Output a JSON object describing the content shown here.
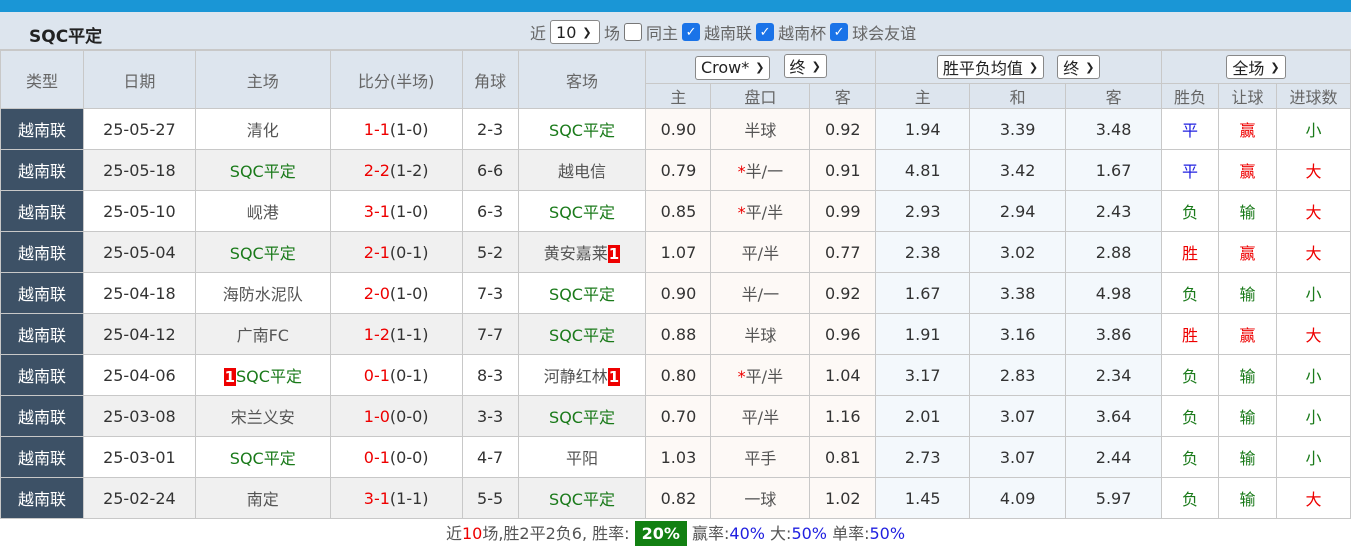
{
  "title": "SQC平定",
  "filters": {
    "recent_prefix": "近",
    "count": "10",
    "recent_suffix": "场",
    "same_home": "同主",
    "cb1": "越南联",
    "cb2": "越南杯",
    "cb3": "球会友谊"
  },
  "headers": {
    "type": "类型",
    "date": "日期",
    "home": "主场",
    "score": "比分(半场)",
    "corner": "角球",
    "away": "客场",
    "company": "Crow*",
    "company_stage": "终",
    "odds_type": "胜平负均值",
    "odds_stage": "终",
    "scope": "全场",
    "ah_home": "主",
    "ah_line": "盘口",
    "ah_away": "客",
    "eu_home": "主",
    "eu_draw": "和",
    "eu_away": "客",
    "res": "胜负",
    "ah_res": "让球",
    "ou_res": "进球数"
  },
  "colors": {
    "header_bar": "#1a96d6",
    "type_cell": "#3d5166",
    "win_badge": "#128012"
  },
  "rows": [
    {
      "type": "越南联",
      "date": "25-05-27",
      "home": "清化",
      "home_sqc": false,
      "home_card": "",
      "score": "1-1",
      "half": "(1-0)",
      "corner": "2-3",
      "away": "SQC平定",
      "away_sqc": true,
      "away_card": "",
      "ah_h": "0.90",
      "ah_star": "",
      "ah_line": "半球",
      "ah_a": "0.92",
      "eu_h": "1.94",
      "eu_d": "3.39",
      "eu_a": "3.48",
      "res": "平",
      "ah_res": "赢",
      "ou": "小"
    },
    {
      "type": "越南联",
      "date": "25-05-18",
      "home": "SQC平定",
      "home_sqc": true,
      "home_card": "",
      "score": "2-2",
      "half": "(1-2)",
      "corner": "6-6",
      "away": "越电信",
      "away_sqc": false,
      "away_card": "",
      "ah_h": "0.79",
      "ah_star": "*",
      "ah_line": "半/一",
      "ah_a": "0.91",
      "eu_h": "4.81",
      "eu_d": "3.42",
      "eu_a": "1.67",
      "res": "平",
      "ah_res": "赢",
      "ou": "大"
    },
    {
      "type": "越南联",
      "date": "25-05-10",
      "home": "岘港",
      "home_sqc": false,
      "home_card": "",
      "score": "3-1",
      "half": "(1-0)",
      "corner": "6-3",
      "away": "SQC平定",
      "away_sqc": true,
      "away_card": "",
      "ah_h": "0.85",
      "ah_star": "*",
      "ah_line": "平/半",
      "ah_a": "0.99",
      "eu_h": "2.93",
      "eu_d": "2.94",
      "eu_a": "2.43",
      "res": "负",
      "ah_res": "输",
      "ou": "大"
    },
    {
      "type": "越南联",
      "date": "25-05-04",
      "home": "SQC平定",
      "home_sqc": true,
      "home_card": "",
      "score": "2-1",
      "half": "(0-1)",
      "corner": "5-2",
      "away": "黄安嘉莱",
      "away_sqc": false,
      "away_card": "1",
      "ah_h": "1.07",
      "ah_star": "",
      "ah_line": "平/半",
      "ah_a": "0.77",
      "eu_h": "2.38",
      "eu_d": "3.02",
      "eu_a": "2.88",
      "res": "胜",
      "ah_res": "赢",
      "ou": "大"
    },
    {
      "type": "越南联",
      "date": "25-04-18",
      "home": "海防水泥队",
      "home_sqc": false,
      "home_card": "",
      "score": "2-0",
      "half": "(1-0)",
      "corner": "7-3",
      "away": "SQC平定",
      "away_sqc": true,
      "away_card": "",
      "ah_h": "0.90",
      "ah_star": "",
      "ah_line": "半/一",
      "ah_a": "0.92",
      "eu_h": "1.67",
      "eu_d": "3.38",
      "eu_a": "4.98",
      "res": "负",
      "ah_res": "输",
      "ou": "小"
    },
    {
      "type": "越南联",
      "date": "25-04-12",
      "home": "广南FC",
      "home_sqc": false,
      "home_card": "",
      "score": "1-2",
      "half": "(1-1)",
      "corner": "7-7",
      "away": "SQC平定",
      "away_sqc": true,
      "away_card": "",
      "ah_h": "0.88",
      "ah_star": "",
      "ah_line": "半球",
      "ah_a": "0.96",
      "eu_h": "1.91",
      "eu_d": "3.16",
      "eu_a": "3.86",
      "res": "胜",
      "ah_res": "赢",
      "ou": "大"
    },
    {
      "type": "越南联",
      "date": "25-04-06",
      "home": "SQC平定",
      "home_sqc": true,
      "home_card": "1",
      "score": "0-1",
      "half": "(0-1)",
      "corner": "8-3",
      "away": "河静红林",
      "away_sqc": false,
      "away_card": "1",
      "ah_h": "0.80",
      "ah_star": "*",
      "ah_line": "平/半",
      "ah_a": "1.04",
      "eu_h": "3.17",
      "eu_d": "2.83",
      "eu_a": "2.34",
      "res": "负",
      "ah_res": "输",
      "ou": "小"
    },
    {
      "type": "越南联",
      "date": "25-03-08",
      "home": "宋兰义安",
      "home_sqc": false,
      "home_card": "",
      "score": "1-0",
      "half": "(0-0)",
      "corner": "3-3",
      "away": "SQC平定",
      "away_sqc": true,
      "away_card": "",
      "ah_h": "0.70",
      "ah_star": "",
      "ah_line": "平/半",
      "ah_a": "1.16",
      "eu_h": "2.01",
      "eu_d": "3.07",
      "eu_a": "3.64",
      "res": "负",
      "ah_res": "输",
      "ou": "小"
    },
    {
      "type": "越南联",
      "date": "25-03-01",
      "home": "SQC平定",
      "home_sqc": true,
      "home_card": "",
      "score": "0-1",
      "half": "(0-0)",
      "corner": "4-7",
      "away": "平阳",
      "away_sqc": false,
      "away_card": "",
      "ah_h": "1.03",
      "ah_star": "",
      "ah_line": "平手",
      "ah_a": "0.81",
      "eu_h": "2.73",
      "eu_d": "3.07",
      "eu_a": "2.44",
      "res": "负",
      "ah_res": "输",
      "ou": "小"
    },
    {
      "type": "越南联",
      "date": "25-02-24",
      "home": "南定",
      "home_sqc": false,
      "home_card": "",
      "score": "3-1",
      "half": "(1-1)",
      "corner": "5-5",
      "away": "SQC平定",
      "away_sqc": true,
      "away_card": "",
      "ah_h": "0.82",
      "ah_star": "",
      "ah_line": "一球",
      "ah_a": "1.02",
      "eu_h": "1.45",
      "eu_d": "4.09",
      "eu_a": "5.97",
      "res": "负",
      "ah_res": "输",
      "ou": "大"
    }
  ],
  "footer": {
    "p1": "近",
    "n": "10",
    "p2": "场,胜2平2负6, 胜率:",
    "win_rate": "20%",
    "p3": " 赢率:",
    "ah_rate": "40%",
    "p4": " 大:",
    "big_rate": "50%",
    "p5": " 单率:",
    "odd_rate": "50%"
  }
}
